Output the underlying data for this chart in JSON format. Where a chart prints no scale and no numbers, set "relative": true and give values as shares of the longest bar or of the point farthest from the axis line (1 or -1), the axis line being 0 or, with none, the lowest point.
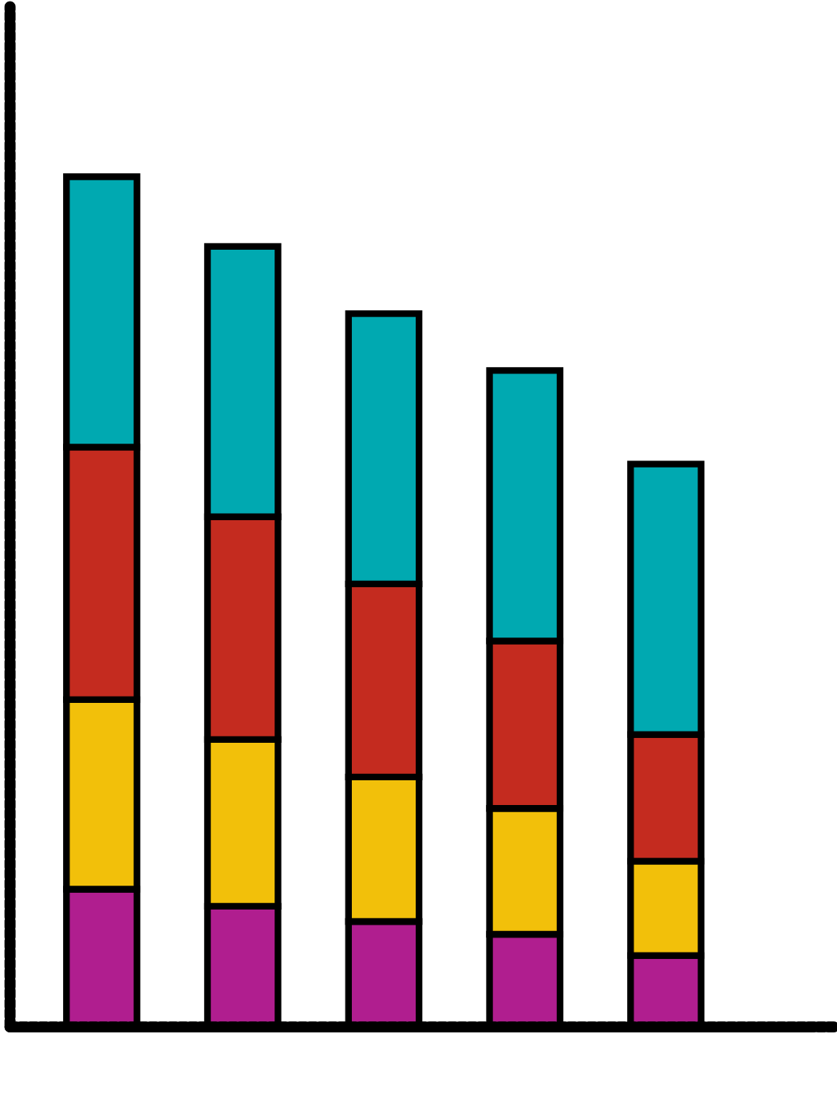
{
  "chart_data": {
    "type": "bar",
    "stacked": true,
    "relative": true,
    "categories": [
      null,
      null,
      null,
      null,
      null
    ],
    "series": [
      {
        "color": "#b01e8f",
        "values": [
          0.162,
          0.142,
          0.124,
          0.109,
          0.084
        ]
      },
      {
        "color": "#f2c00a",
        "values": [
          0.223,
          0.196,
          0.17,
          0.148,
          0.111
        ]
      },
      {
        "color": "#c42b1f",
        "values": [
          0.297,
          0.262,
          0.227,
          0.197,
          0.149
        ]
      },
      {
        "color": "#00a9b1",
        "values": [
          0.318,
          0.318,
          0.318,
          0.318,
          0.318
        ]
      }
    ]
  }
}
